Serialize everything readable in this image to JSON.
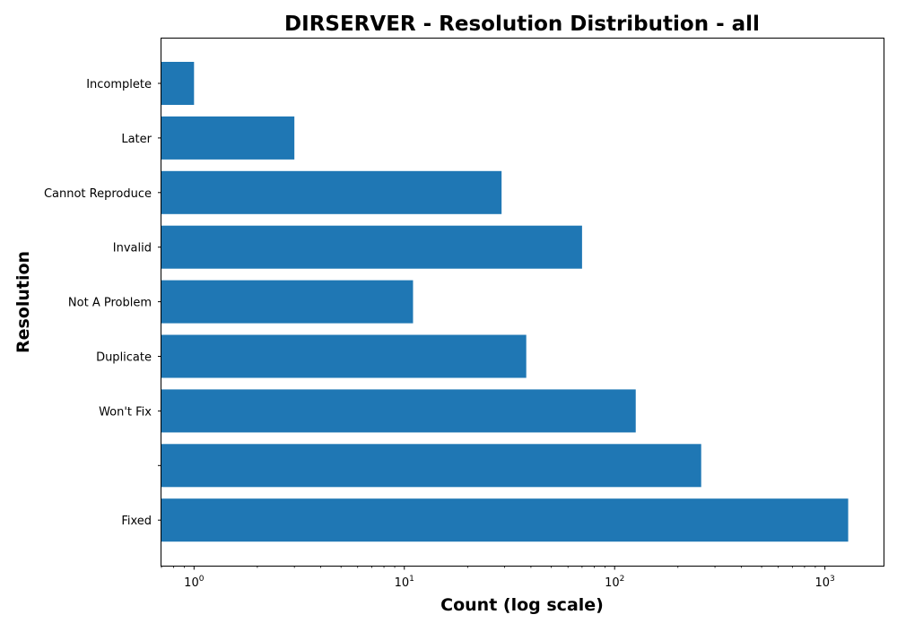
{
  "chart_data": {
    "type": "bar",
    "orientation": "horizontal",
    "title": "DIRSERVER - Resolution Distribution - all",
    "xlabel": "Count (log scale)",
    "ylabel": "Resolution",
    "xscale": "log",
    "xlim": [
      0.7,
      1900
    ],
    "grid": false,
    "legend": "none",
    "bar_color": "#1f77b4",
    "x_ticks": [
      {
        "value": 1,
        "base": "10",
        "exp": "0"
      },
      {
        "value": 10,
        "base": "10",
        "exp": "1"
      },
      {
        "value": 100,
        "base": "10",
        "exp": "2"
      },
      {
        "value": 1000,
        "base": "10",
        "exp": "3"
      }
    ],
    "categories": [
      "Incomplete",
      "Later",
      "Cannot Reproduce",
      "Invalid",
      "Not A Problem",
      "Duplicate",
      "Won't Fix",
      "",
      "Fixed"
    ],
    "values": [
      1,
      3,
      29,
      70,
      11,
      38,
      126,
      258,
      1290
    ]
  }
}
